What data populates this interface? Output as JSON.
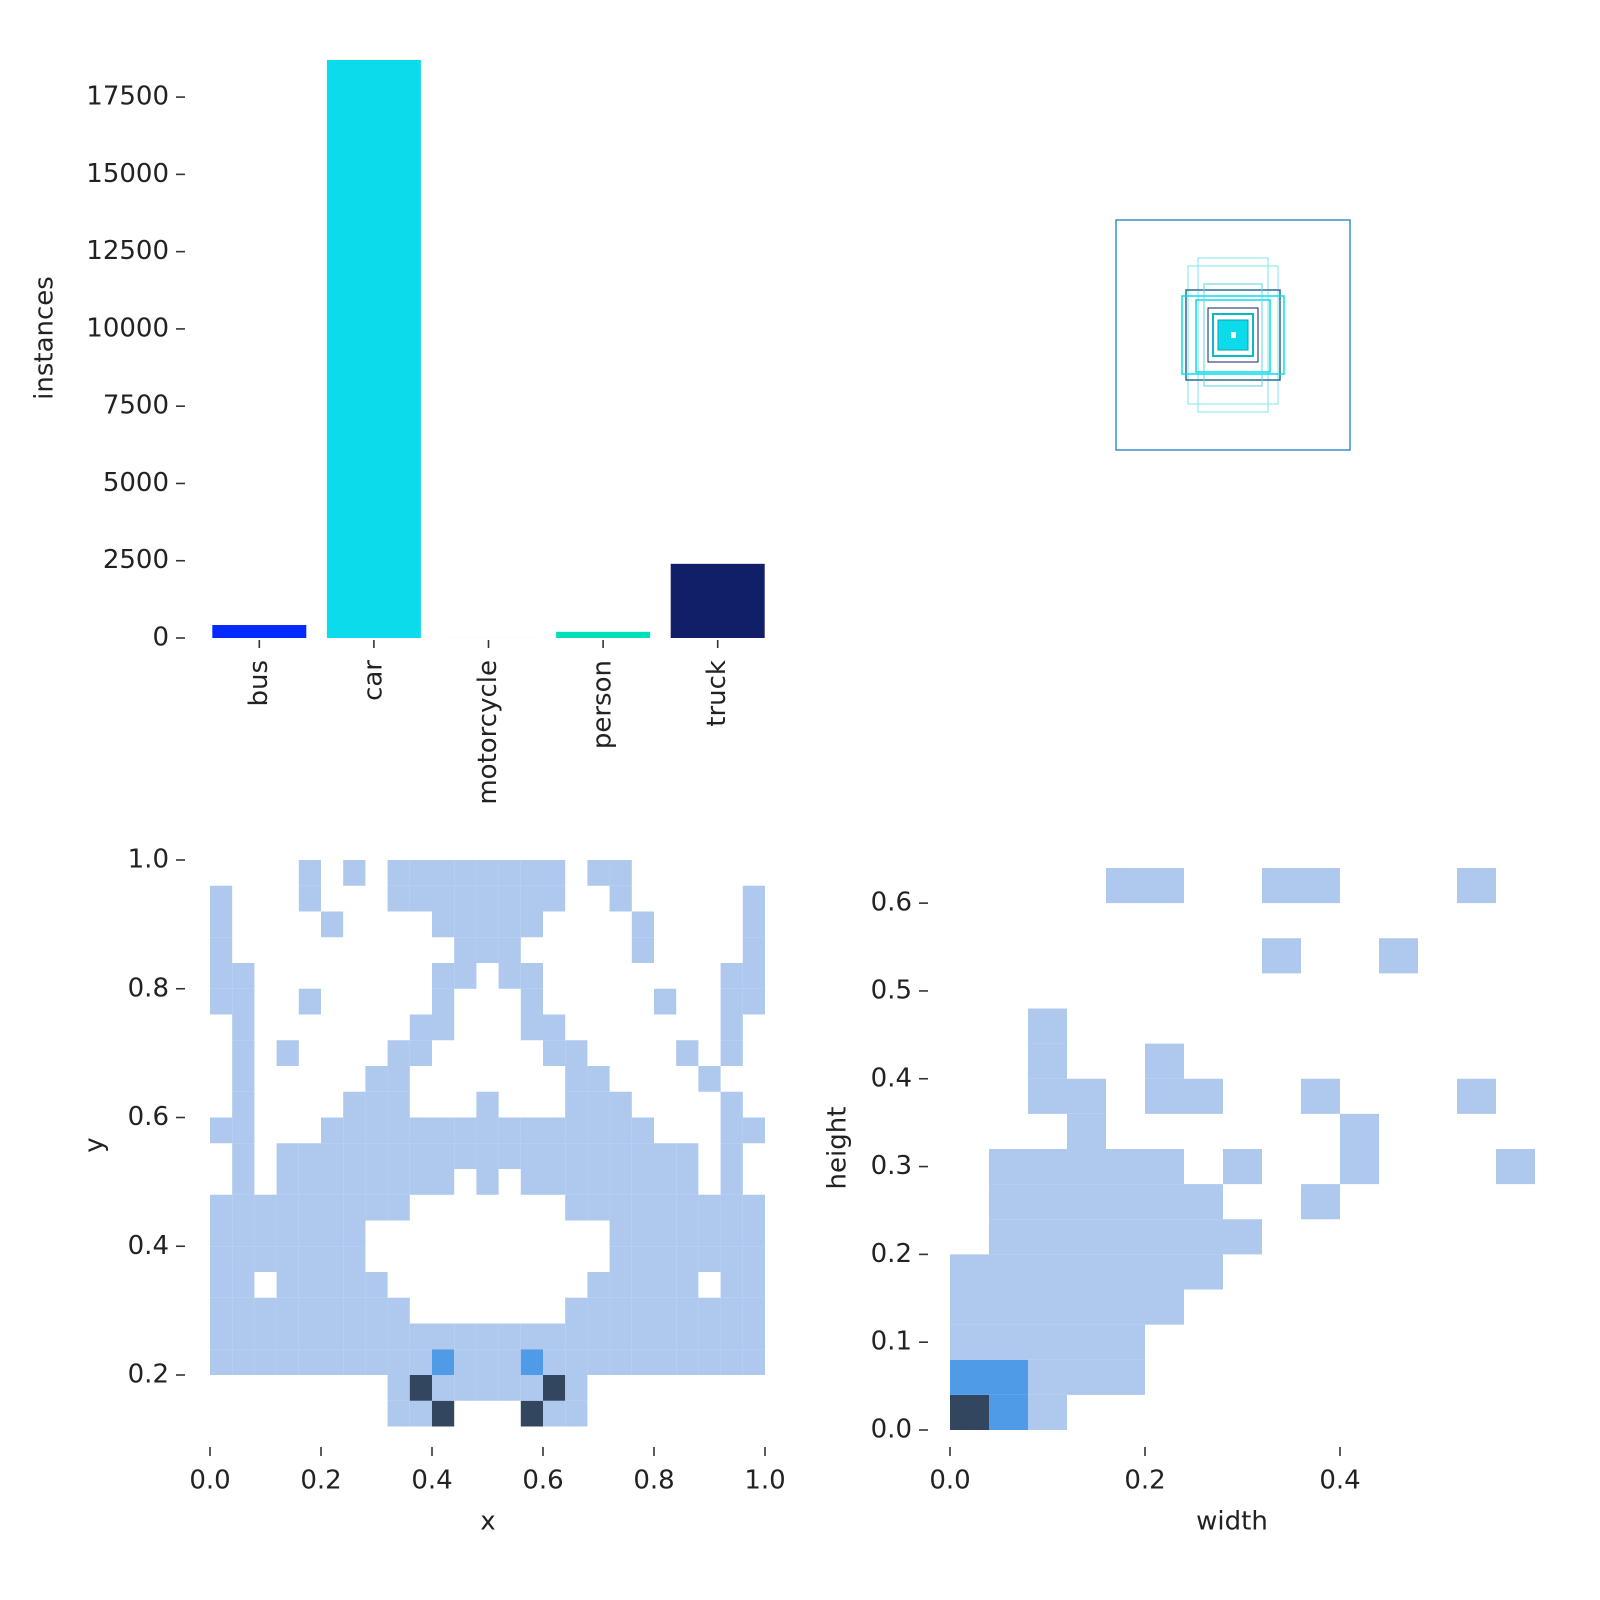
{
  "chart_data": [
    {
      "type": "bar",
      "ylabel": "instances",
      "categories": [
        "bus",
        "car",
        "motorcycle",
        "person",
        "truck"
      ],
      "values": [
        420,
        18700,
        10,
        200,
        2400
      ],
      "colors": [
        "#042aff",
        "#0bdbeb",
        "#f3f3f3",
        "#00dfb7",
        "#111f68"
      ],
      "ylim": [
        0,
        18700
      ],
      "yticks": [
        0,
        2500,
        5000,
        7500,
        10000,
        12500,
        15000,
        17500
      ]
    },
    {
      "type": "hist2d",
      "xlabel": "x",
      "ylabel": "y",
      "xlim": [
        0,
        1
      ],
      "ylim": [
        0.12,
        1
      ],
      "xticks": [
        {
          "value": 0,
          "label": "0.0"
        },
        0.2,
        0.4,
        0.6,
        0.8,
        {
          "value": 1,
          "label": "1.0"
        }
      ],
      "yticks": [
        0.2,
        0.4,
        0.6,
        0.8,
        {
          "value": 1,
          "label": "1.0"
        }
      ],
      "cmap": [
        "#aec8ee",
        "#4f9be8",
        "#33465f"
      ],
      "xbins": [
        0,
        0.04,
        0.08,
        0.12,
        0.16,
        0.2,
        0.24,
        0.28,
        0.32,
        0.36,
        0.4,
        0.44,
        0.48,
        0.52,
        0.56,
        0.6,
        0.64,
        0.68,
        0.72,
        0.76,
        0.8,
        0.84,
        0.88,
        0.92,
        0.96,
        1
      ],
      "ybins": [
        0.12,
        0.16,
        0.2,
        0.24,
        0.28,
        0.32,
        0.36,
        0.4,
        0.44,
        0.48,
        0.52,
        0.56,
        0.6,
        0.64,
        0.68,
        0.72,
        0.76,
        0.8,
        0.84,
        0.88,
        0.92,
        0.96,
        1
      ],
      "z": [
        [
          0,
          0,
          0,
          0,
          0,
          0,
          0,
          0,
          1,
          1,
          10,
          0,
          0,
          0,
          10,
          1,
          1,
          0,
          0,
          0,
          0,
          0,
          0,
          0,
          0
        ],
        [
          0,
          0,
          0,
          0,
          0,
          0,
          0,
          0,
          1,
          10,
          1,
          1,
          1,
          1,
          1,
          10,
          1,
          0,
          0,
          0,
          0,
          0,
          0,
          0,
          0
        ],
        [
          1,
          1,
          1,
          1,
          1,
          1,
          1,
          1,
          1,
          1,
          4,
          1,
          1,
          1,
          4,
          1,
          1,
          1,
          1,
          1,
          1,
          1,
          1,
          1,
          1
        ],
        [
          1,
          1,
          1,
          1,
          1,
          1,
          1,
          1,
          1,
          1,
          1,
          1,
          1,
          1,
          1,
          1,
          1,
          1,
          1,
          1,
          1,
          1,
          1,
          1,
          1
        ],
        [
          1,
          1,
          1,
          1,
          1,
          1,
          1,
          1,
          1,
          0,
          0,
          0,
          0,
          0,
          0,
          0,
          1,
          1,
          1,
          1,
          1,
          1,
          1,
          1,
          1
        ],
        [
          1,
          1,
          0,
          1,
          1,
          1,
          1,
          1,
          0,
          0,
          0,
          0,
          0,
          0,
          0,
          0,
          0,
          1,
          1,
          1,
          1,
          1,
          0,
          1,
          1
        ],
        [
          1,
          1,
          1,
          1,
          1,
          1,
          1,
          0,
          0,
          0,
          0,
          0,
          0,
          0,
          0,
          0,
          0,
          0,
          1,
          1,
          1,
          1,
          1,
          1,
          1
        ],
        [
          1,
          1,
          1,
          1,
          1,
          1,
          1,
          0,
          0,
          0,
          0,
          0,
          0,
          0,
          0,
          0,
          0,
          0,
          1,
          1,
          1,
          1,
          1,
          1,
          1
        ],
        [
          1,
          1,
          1,
          1,
          1,
          1,
          1,
          1,
          1,
          0,
          0,
          0,
          0,
          0,
          0,
          0,
          1,
          1,
          1,
          1,
          1,
          1,
          1,
          1,
          1
        ],
        [
          0,
          1,
          0,
          1,
          1,
          1,
          1,
          1,
          1,
          1,
          1,
          0,
          1,
          0,
          1,
          1,
          1,
          1,
          1,
          1,
          1,
          1,
          0,
          1,
          0
        ],
        [
          0,
          1,
          0,
          1,
          1,
          1,
          1,
          1,
          1,
          1,
          1,
          1,
          1,
          1,
          1,
          1,
          1,
          1,
          1,
          1,
          1,
          1,
          0,
          1,
          0
        ],
        [
          1,
          1,
          0,
          0,
          0,
          1,
          1,
          1,
          1,
          1,
          1,
          1,
          1,
          1,
          1,
          1,
          1,
          1,
          1,
          1,
          0,
          0,
          0,
          1,
          1
        ],
        [
          0,
          1,
          0,
          0,
          0,
          0,
          1,
          1,
          1,
          0,
          0,
          0,
          1,
          0,
          0,
          0,
          1,
          1,
          1,
          0,
          0,
          0,
          0,
          1,
          0
        ],
        [
          0,
          1,
          0,
          0,
          0,
          0,
          0,
          1,
          1,
          0,
          0,
          0,
          0,
          0,
          0,
          0,
          1,
          1,
          0,
          0,
          0,
          0,
          1,
          0,
          0
        ],
        [
          0,
          1,
          0,
          1,
          0,
          0,
          0,
          0,
          1,
          1,
          0,
          0,
          0,
          0,
          0,
          1,
          1,
          0,
          0,
          0,
          0,
          1,
          0,
          1,
          0
        ],
        [
          0,
          1,
          0,
          0,
          0,
          0,
          0,
          0,
          0,
          1,
          1,
          0,
          0,
          0,
          1,
          1,
          0,
          0,
          0,
          0,
          0,
          0,
          0,
          1,
          0
        ],
        [
          1,
          1,
          0,
          0,
          1,
          0,
          0,
          0,
          0,
          0,
          1,
          0,
          0,
          0,
          1,
          0,
          0,
          0,
          0,
          0,
          1,
          0,
          0,
          1,
          1
        ],
        [
          1,
          1,
          0,
          0,
          0,
          0,
          0,
          0,
          0,
          0,
          1,
          1,
          0,
          1,
          1,
          0,
          0,
          0,
          0,
          0,
          0,
          0,
          0,
          1,
          1
        ],
        [
          1,
          0,
          0,
          0,
          0,
          0,
          0,
          0,
          0,
          0,
          0,
          1,
          1,
          1,
          0,
          0,
          0,
          0,
          0,
          1,
          0,
          0,
          0,
          0,
          1
        ],
        [
          1,
          0,
          0,
          0,
          0,
          1,
          0,
          0,
          0,
          0,
          1,
          1,
          1,
          1,
          1,
          0,
          0,
          0,
          0,
          1,
          0,
          0,
          0,
          0,
          1
        ],
        [
          1,
          0,
          0,
          0,
          1,
          0,
          0,
          0,
          1,
          1,
          1,
          1,
          1,
          1,
          1,
          1,
          0,
          0,
          1,
          0,
          0,
          0,
          0,
          0,
          1
        ],
        [
          0,
          0,
          0,
          0,
          1,
          0,
          1,
          0,
          1,
          1,
          1,
          1,
          1,
          1,
          1,
          1,
          0,
          1,
          1,
          0,
          0,
          0,
          0,
          0,
          0
        ]
      ]
    },
    {
      "type": "hist2d",
      "xlabel": "width",
      "ylabel": "height",
      "xlim": [
        0,
        0.6
      ],
      "ylim": [
        0,
        0.64
      ],
      "xticks": [
        {
          "value": 0,
          "label": "0.0"
        },
        0.2,
        0.4
      ],
      "yticks": [
        {
          "value": 0,
          "label": "0.0"
        },
        0.1,
        0.2,
        0.3,
        0.4,
        0.5,
        0.6
      ],
      "cmap": [
        "#aec8ee",
        "#4f9be8",
        "#33465f"
      ],
      "xbins": [
        0,
        0.04,
        0.08,
        0.12,
        0.16,
        0.2,
        0.24,
        0.28,
        0.32,
        0.36,
        0.4,
        0.44,
        0.48,
        0.52,
        0.56,
        0.6
      ],
      "ybins": [
        0,
        0.04,
        0.08,
        0.12,
        0.16,
        0.2,
        0.24,
        0.28,
        0.32,
        0.36,
        0.4,
        0.44,
        0.48,
        0.52,
        0.56,
        0.6,
        0.64
      ],
      "z": [
        [
          10,
          4,
          1,
          0,
          0,
          0,
          0,
          0,
          0,
          0,
          0,
          0,
          0,
          0,
          0
        ],
        [
          4,
          4,
          1,
          1,
          1,
          0,
          0,
          0,
          0,
          0,
          0,
          0,
          0,
          0,
          0
        ],
        [
          1,
          1,
          1,
          1,
          1,
          0,
          0,
          0,
          0,
          0,
          0,
          0,
          0,
          0,
          0
        ],
        [
          1,
          1,
          1,
          1,
          1,
          1,
          0,
          0,
          0,
          0,
          0,
          0,
          0,
          0,
          0
        ],
        [
          1,
          1,
          1,
          1,
          1,
          1,
          1,
          0,
          0,
          0,
          0,
          0,
          0,
          0,
          0
        ],
        [
          0,
          1,
          1,
          1,
          1,
          1,
          1,
          1,
          0,
          0,
          0,
          0,
          0,
          0,
          0
        ],
        [
          0,
          1,
          1,
          1,
          1,
          1,
          1,
          0,
          0,
          1,
          0,
          0,
          0,
          0,
          0
        ],
        [
          0,
          1,
          1,
          1,
          1,
          1,
          0,
          1,
          0,
          0,
          1,
          0,
          0,
          0,
          1
        ],
        [
          0,
          0,
          0,
          1,
          0,
          0,
          0,
          0,
          0,
          0,
          1,
          0,
          0,
          0,
          0
        ],
        [
          0,
          0,
          1,
          1,
          0,
          1,
          1,
          0,
          0,
          1,
          0,
          0,
          0,
          1,
          0
        ],
        [
          0,
          0,
          1,
          0,
          0,
          1,
          0,
          0,
          0,
          0,
          0,
          0,
          0,
          0,
          0
        ],
        [
          0,
          0,
          1,
          0,
          0,
          0,
          0,
          0,
          0,
          0,
          0,
          0,
          0,
          0,
          0
        ],
        [
          0,
          0,
          0,
          0,
          0,
          0,
          0,
          0,
          0,
          0,
          0,
          0,
          0,
          0,
          0
        ],
        [
          0,
          0,
          0,
          0,
          0,
          0,
          0,
          0,
          1,
          0,
          0,
          1,
          0,
          0,
          0
        ],
        [
          0,
          0,
          0,
          0,
          0,
          0,
          0,
          0,
          0,
          0,
          0,
          0,
          0,
          0,
          0
        ],
        [
          0,
          0,
          0,
          0,
          1,
          1,
          0,
          0,
          1,
          1,
          0,
          0,
          0,
          1,
          0
        ]
      ]
    }
  ]
}
